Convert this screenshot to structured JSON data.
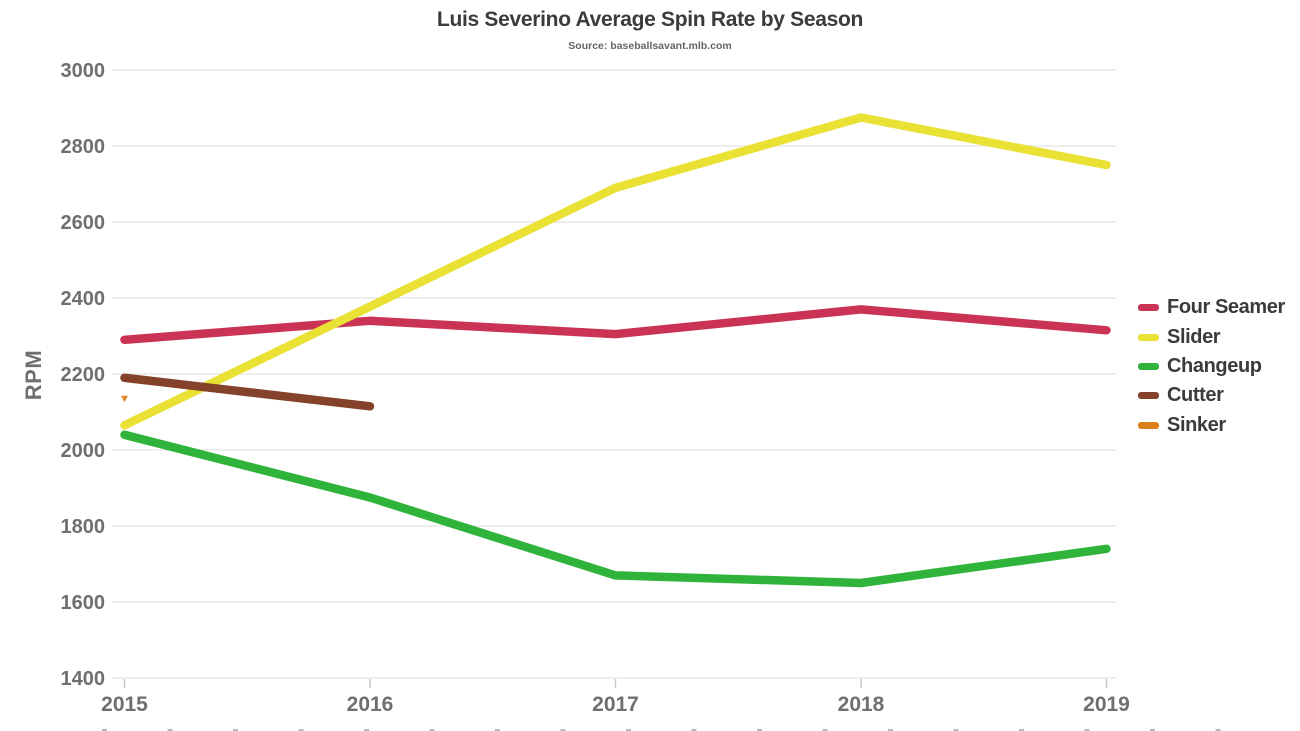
{
  "page": {
    "title": "Luis Severino Average Spin Rate by Season",
    "subtitle": "Source: baseballsavant.mlb.com"
  },
  "chart_data": {
    "type": "line",
    "title": "Luis Severino Average Spin Rate by Season",
    "subtitle": "Source: baseballsavant.mlb.com",
    "xlabel": "",
    "ylabel": "RPM",
    "x_ticks": [
      2015,
      2016,
      2017,
      2018,
      2019
    ],
    "ylim": [
      1400,
      3000
    ],
    "y_tick_step": 200,
    "grid": "horizontal",
    "legend_position": "right",
    "colors": {
      "four_seamer": "#cb3355",
      "slider": "#e9e133",
      "changeup": "#2fb33b",
      "cutter": "#85422b",
      "sinker": "#dd7e1d"
    },
    "series": [
      {
        "name": "Four Seamer",
        "color": "#cb3355",
        "points": [
          [
            2015,
            2290
          ],
          [
            2016,
            2340
          ],
          [
            2017,
            2305
          ],
          [
            2018,
            2370
          ],
          [
            2019,
            2315
          ]
        ]
      },
      {
        "name": "Slider",
        "color": "#e9e133",
        "points": [
          [
            2015,
            2065
          ],
          [
            2017,
            2690
          ],
          [
            2018,
            2875
          ],
          [
            2019,
            2750
          ]
        ]
      },
      {
        "name": "Changeup",
        "color": "#2fb33b",
        "points": [
          [
            2015,
            2040
          ],
          [
            2016,
            1875
          ],
          [
            2017,
            1670
          ],
          [
            2018,
            1650
          ],
          [
            2019,
            1740
          ]
        ]
      },
      {
        "name": "Cutter",
        "color": "#85422b",
        "points": [
          [
            2015,
            2190
          ],
          [
            2016,
            2115
          ]
        ]
      },
      {
        "name": "Sinker",
        "color": "#dd7e1d",
        "marker_only": true,
        "points": [
          [
            2015,
            2135
          ]
        ]
      }
    ]
  }
}
